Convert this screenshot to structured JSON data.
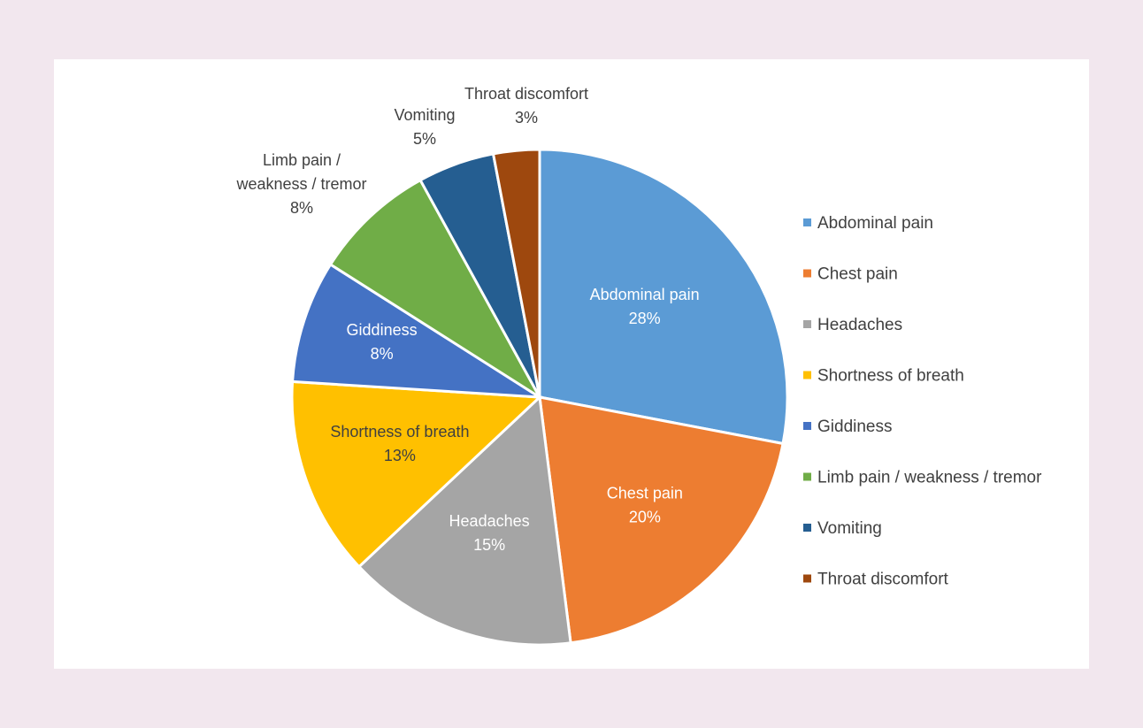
{
  "chart_data": {
    "type": "pie",
    "title": "",
    "legend_position": "right",
    "slices": [
      {
        "label": "Abdominal pain",
        "value": 28,
        "display": "28%",
        "color": "#5b9bd5",
        "label_color": "#ffffff"
      },
      {
        "label": "Chest pain",
        "value": 20,
        "display": "20%",
        "color": "#ed7d31",
        "label_color": "#ffffff"
      },
      {
        "label": "Headaches",
        "value": 15,
        "display": "15%",
        "color": "#a5a5a5",
        "label_color": "#ffffff"
      },
      {
        "label": "Shortness of breath",
        "value": 13,
        "display": "13%",
        "color": "#ffc000",
        "label_color": "#404040"
      },
      {
        "label": "Giddiness",
        "value": 8,
        "display": "8%",
        "color": "#4472c4",
        "label_color": "#ffffff"
      },
      {
        "label": "Limb pain / weakness / tremor",
        "value": 8,
        "display": "8%",
        "color": "#70ad47",
        "label_color": "#404040"
      },
      {
        "label": "Vomiting",
        "value": 5,
        "display": "5%",
        "color": "#255e91",
        "label_color": "#404040"
      },
      {
        "label": "Throat discomfort",
        "value": 3,
        "display": "3%",
        "color": "#9e480e",
        "label_color": "#404040"
      }
    ]
  }
}
